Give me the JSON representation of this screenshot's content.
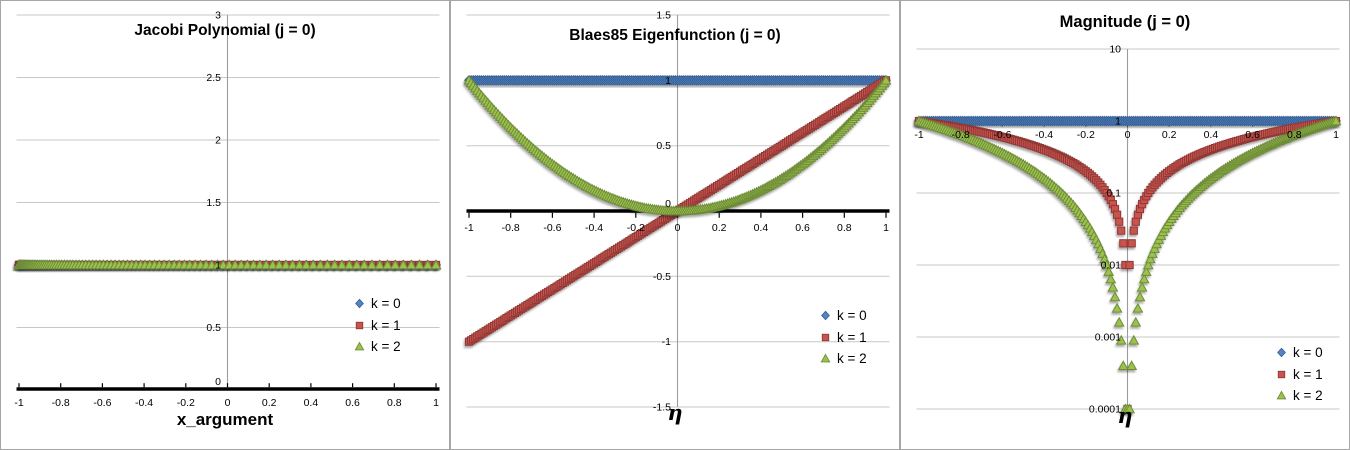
{
  "palette": {
    "series_blue": {
      "fill": "#5586C4",
      "edge": "#365F94"
    },
    "series_red": {
      "fill": "#C9534E",
      "edge": "#8F3934"
    },
    "series_green": {
      "fill": "#9CC24E",
      "edge": "#6E8C38"
    },
    "gridline": "#C7C7C7",
    "center_line": "#9C9C9C",
    "axis_line": "#000000",
    "tick_text": "#000000",
    "panel_border": "#A6A6A6",
    "background": "#FFFFFF"
  },
  "chart_data": [
    {
      "type": "scatter",
      "title": "Jacobi Polynomial (j = 0)",
      "xlabel": "x_argument",
      "ylabel": "",
      "grid": true,
      "legend_position": "right-middle",
      "legend_items": [
        "k = 0",
        "k = 1",
        "k = 2"
      ],
      "x_axis": {
        "min": -1,
        "max": 1,
        "ticks": [
          -1,
          -0.8,
          -0.6,
          -0.4,
          -0.2,
          0,
          0.2,
          0.4,
          0.6,
          0.8,
          1
        ]
      },
      "y_axis": {
        "scale": "linear",
        "min": 0,
        "max": 3,
        "ticks": [
          3,
          2.5,
          2,
          1.5,
          1,
          0.5,
          0
        ],
        "cross": 0
      },
      "sampling": {
        "variable": "eta",
        "start": -1,
        "end": 1,
        "step": 0.01
      },
      "series": [
        {
          "name": "k = 0",
          "marker": "diamond",
          "color": "series_blue",
          "x_formula": "2*eta^2-1",
          "y_formula": "1"
        },
        {
          "name": "k = 1",
          "marker": "square",
          "color": "series_red",
          "x_formula": "2*eta^2-1",
          "y_formula": "1"
        },
        {
          "name": "k = 2",
          "marker": "triangle",
          "color": "series_green",
          "x_formula": "2*eta^2-1",
          "y_formula": "1"
        }
      ]
    },
    {
      "type": "scatter",
      "title": "Blaes85 Eigenfunction (j = 0)",
      "xlabel": "η",
      "ylabel": "",
      "grid": true,
      "legend_position": "right-middle",
      "legend_items": [
        "k = 0",
        "k = 1",
        "k = 2"
      ],
      "x_axis": {
        "min": -1,
        "max": 1,
        "ticks": [
          -1,
          -0.8,
          -0.6,
          -0.4,
          -0.2,
          0,
          0.2,
          0.4,
          0.6,
          0.8,
          1
        ]
      },
      "y_axis": {
        "scale": "linear",
        "min": -1.5,
        "max": 1.5,
        "ticks": [
          1.5,
          1,
          0.5,
          0,
          -0.5,
          -1,
          -1.5
        ],
        "cross": 0
      },
      "sampling": {
        "variable": "eta",
        "start": -1,
        "end": 1,
        "step": 0.01
      },
      "series": [
        {
          "name": "k = 0",
          "marker": "diamond",
          "color": "series_blue",
          "x_formula": "eta",
          "y_formula": "1"
        },
        {
          "name": "k = 1",
          "marker": "square",
          "color": "series_red",
          "x_formula": "eta",
          "y_formula": "eta"
        },
        {
          "name": "k = 2",
          "marker": "triangle",
          "color": "series_green",
          "x_formula": "eta",
          "y_formula": "eta^2"
        }
      ]
    },
    {
      "type": "scatter",
      "title": "Magnitude (j = 0)",
      "xlabel": "η",
      "ylabel": "",
      "grid": true,
      "legend_position": "right-bottom",
      "legend_items": [
        "k = 0",
        "k = 1",
        "k = 2"
      ],
      "x_axis": {
        "min": -1,
        "max": 1,
        "ticks": [
          -1,
          -0.8,
          -0.6,
          -0.4,
          -0.2,
          0,
          0.2,
          0.4,
          0.6,
          0.8,
          1
        ]
      },
      "y_axis": {
        "scale": "log",
        "min": 0.0001,
        "max": 10,
        "ticks": [
          10,
          1,
          0.1,
          0.01,
          0.001,
          0.0001
        ],
        "cross": 1
      },
      "sampling": {
        "variable": "eta",
        "start": -1,
        "end": 1,
        "step": 0.01
      },
      "series": [
        {
          "name": "k = 0",
          "marker": "diamond",
          "color": "series_blue",
          "x_formula": "eta",
          "y_formula": "1"
        },
        {
          "name": "k = 1",
          "marker": "square",
          "color": "series_red",
          "x_formula": "eta",
          "y_formula": "abs(eta)",
          "clamp_min": 0.0001
        },
        {
          "name": "k = 2",
          "marker": "triangle",
          "color": "series_green",
          "x_formula": "eta",
          "y_formula": "eta^2",
          "clamp_min": 0.0001
        }
      ]
    }
  ]
}
